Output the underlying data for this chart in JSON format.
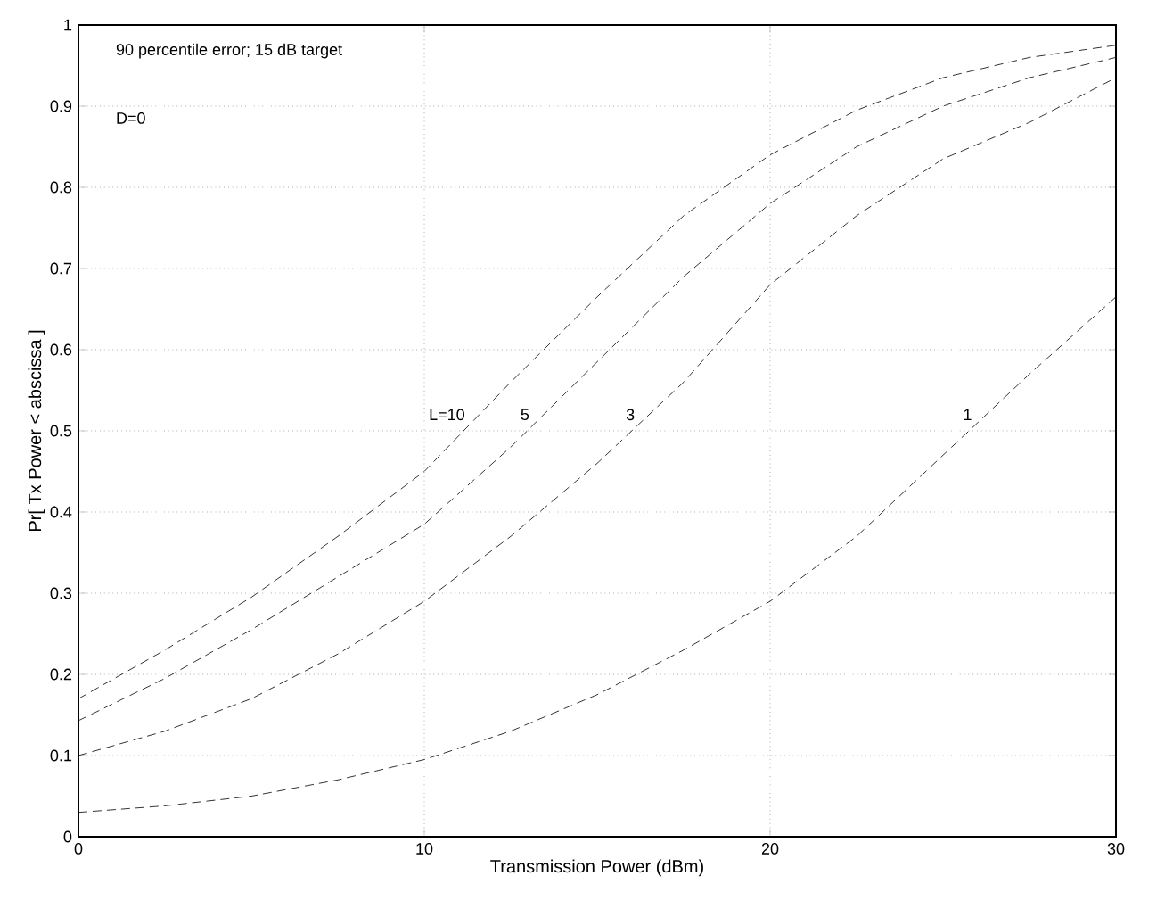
{
  "chart_data": {
    "type": "line",
    "xlabel": "Transmission Power (dBm)",
    "ylabel": "Pr[ Tx Power < abscissa ]",
    "annotations": [
      "90 percentile error; 15 dB target",
      "D=0"
    ],
    "x": [
      0,
      2.5,
      5,
      7.5,
      10,
      12.5,
      15,
      17.5,
      20,
      22.5,
      25,
      27.5,
      30
    ],
    "series": [
      {
        "name": "L=10",
        "color": "#000000",
        "values": [
          0.17,
          0.23,
          0.295,
          0.37,
          0.45,
          0.56,
          0.665,
          0.765,
          0.84,
          0.895,
          0.935,
          0.96,
          0.975
        ]
      },
      {
        "name": "5",
        "color": "#000000",
        "values": [
          0.143,
          0.195,
          0.255,
          0.32,
          0.385,
          0.48,
          0.585,
          0.69,
          0.78,
          0.85,
          0.9,
          0.935,
          0.96
        ]
      },
      {
        "name": "3",
        "color": "#000000",
        "values": [
          0.1,
          0.13,
          0.17,
          0.225,
          0.29,
          0.37,
          0.46,
          0.56,
          0.68,
          0.765,
          0.835,
          0.88,
          0.935
        ]
      },
      {
        "name": "1",
        "color": "#000000",
        "values": [
          0.03,
          0.038,
          0.05,
          0.07,
          0.095,
          0.13,
          0.175,
          0.23,
          0.29,
          0.37,
          0.47,
          0.57,
          0.665
        ]
      }
    ],
    "xlim": [
      0,
      30
    ],
    "ylim": [
      0,
      1
    ],
    "xticks": [
      0,
      10,
      20,
      30
    ],
    "yticks": [
      0,
      0.1,
      0.2,
      0.3,
      0.4,
      0.5,
      0.6,
      0.7,
      0.8,
      0.9,
      1
    ],
    "grid": true,
    "legend": false,
    "line_style": "dashed",
    "marker": "none"
  }
}
